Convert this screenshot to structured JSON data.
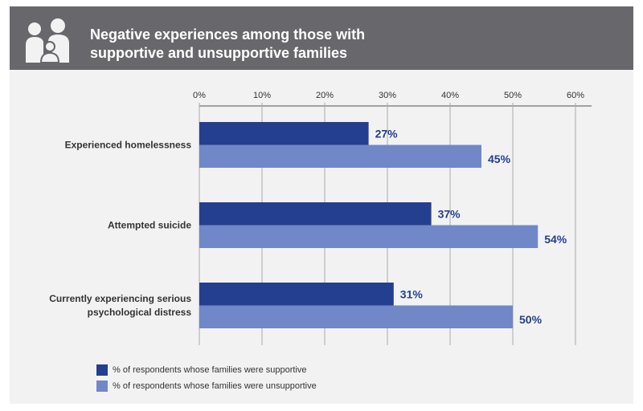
{
  "header": {
    "title_line1": "Negative experiences among those with",
    "title_line2": "supportive and unsupportive families",
    "icon": "family-icon"
  },
  "chart_data": {
    "type": "bar",
    "orientation": "horizontal",
    "title": "Negative experiences among those with supportive and unsupportive families",
    "categories": [
      "Experienced homelessness",
      "Attempted suicide",
      "Currently experiencing serious psychological distress"
    ],
    "category_lines": [
      [
        "Experienced homelessness"
      ],
      [
        "Attempted suicide"
      ],
      [
        "Currently experiencing serious",
        "psychological distress"
      ]
    ],
    "series": [
      {
        "name": "% of respondents whose families were supportive",
        "values": [
          27,
          37,
          31
        ],
        "color": "#243f8f"
      },
      {
        "name": "% of respondents whose families were unsupportive",
        "values": [
          45,
          54,
          50
        ],
        "color": "#7088c8"
      }
    ],
    "xlim": [
      0,
      60
    ],
    "ticks": [
      "0%",
      "10%",
      "20%",
      "30%",
      "40%",
      "50%",
      "60%"
    ],
    "grid": true,
    "axis_position": "top",
    "legend_position": "bottom-left"
  }
}
